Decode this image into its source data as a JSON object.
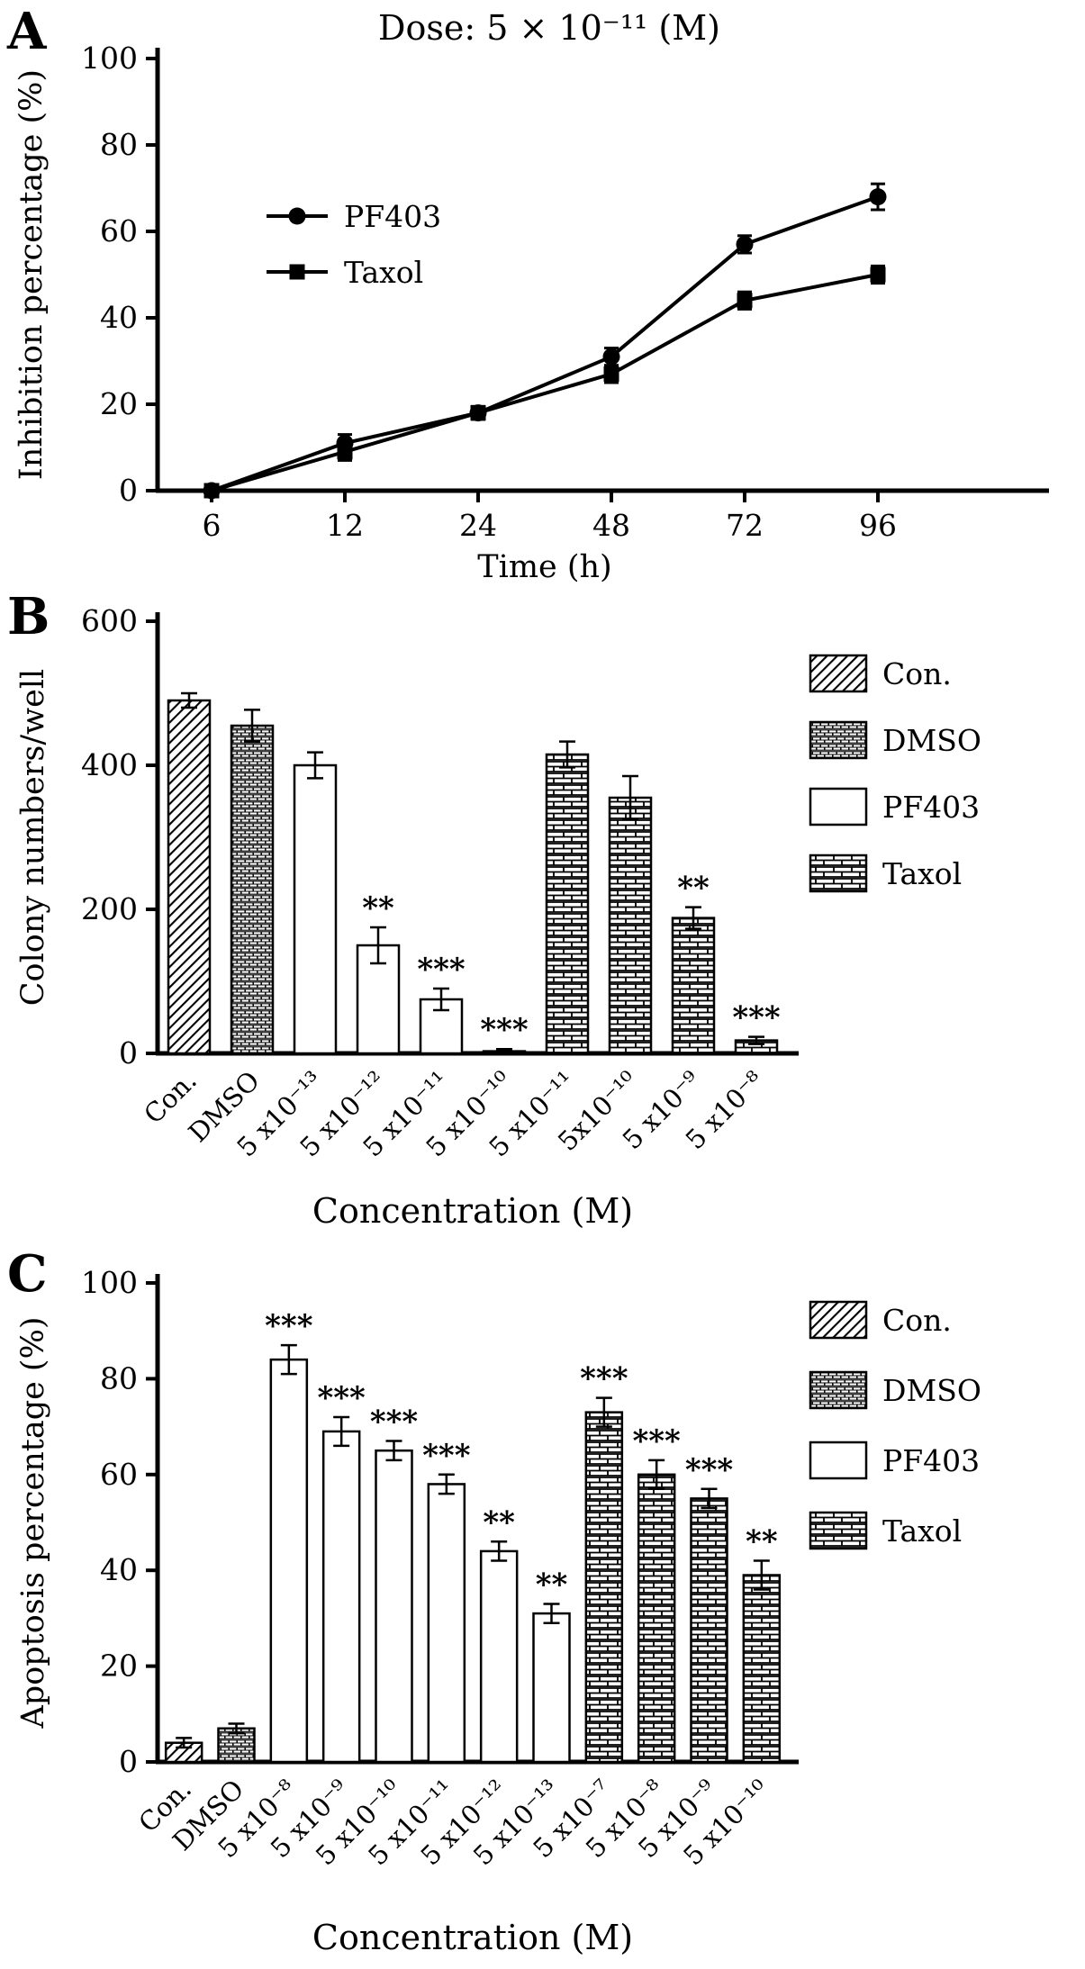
{
  "panel_labels": [
    "A",
    "B",
    "C"
  ],
  "chart_data": [
    {
      "panel": "A",
      "type": "line",
      "title": "Dose: 5 × 10⁻¹¹ (M)",
      "xlabel": "Time (h)",
      "ylabel": "Inhibition percentage (%)",
      "x_ticks": [
        "6",
        "12",
        "24",
        "48",
        "72",
        "96"
      ],
      "y_ticks": [
        0,
        20,
        40,
        60,
        80,
        100
      ],
      "ylim": [
        0,
        100
      ],
      "grid": false,
      "legend_position": "inside-left",
      "series": [
        {
          "name": "PF403",
          "marker": "circle",
          "values": [
            0,
            11,
            18,
            31,
            57,
            68
          ],
          "errors": [
            1,
            2,
            1.5,
            2,
            2,
            3
          ]
        },
        {
          "name": "Taxol",
          "marker": "square",
          "values": [
            0,
            9,
            18,
            27,
            44,
            50
          ],
          "errors": [
            1,
            2,
            1.5,
            2,
            2,
            2
          ]
        }
      ]
    },
    {
      "panel": "B",
      "type": "bar",
      "title": "",
      "xlabel": "Concentration (M)",
      "ylabel": "Colony numbers/well",
      "ylim": [
        0,
        600
      ],
      "y_ticks": [
        0,
        200,
        400,
        600
      ],
      "grid": false,
      "legend_position": "outside-right",
      "categories": [
        "Con.",
        "DMSO",
        "5 x10⁻¹³",
        "5 x10⁻¹²",
        "5 x10⁻¹¹",
        "5 x10⁻¹⁰",
        "5 x10⁻¹¹",
        "5x10⁻¹⁰",
        "5 x10⁻⁹",
        "5 x10⁻⁸"
      ],
      "values": [
        490,
        455,
        400,
        150,
        75,
        3,
        415,
        355,
        188,
        18
      ],
      "errors": [
        10,
        22,
        18,
        25,
        15,
        3,
        18,
        30,
        15,
        5
      ],
      "significance": [
        "",
        "",
        "",
        "**",
        "***",
        "***",
        "",
        "",
        "**",
        "***"
      ],
      "fills": [
        "hatch",
        "dmso",
        "white",
        "white",
        "white",
        "white",
        "brick",
        "brick",
        "brick",
        "brick"
      ],
      "legend": [
        {
          "label": "Con.",
          "fill": "hatch"
        },
        {
          "label": "DMSO",
          "fill": "dmso"
        },
        {
          "label": "PF403",
          "fill": "white"
        },
        {
          "label": "Taxol",
          "fill": "brick"
        }
      ]
    },
    {
      "panel": "C",
      "type": "bar",
      "title": "",
      "xlabel": "Concentration (M)",
      "ylabel": "Apoptosis percentage (%)",
      "ylim": [
        0,
        100
      ],
      "y_ticks": [
        0,
        20,
        40,
        60,
        80,
        100
      ],
      "grid": false,
      "legend_position": "outside-right",
      "categories": [
        "Con.",
        "DMSO",
        "5 x10⁻⁸",
        "5 x10⁻⁹",
        "5 x10⁻¹⁰",
        "5 x10⁻¹¹",
        "5 x10⁻¹²",
        "5 x10⁻¹³",
        "5 x10⁻⁷",
        "5 x10⁻⁸",
        "5 x10⁻⁹",
        "5 x10⁻¹⁰"
      ],
      "values": [
        4,
        7,
        84,
        69,
        65,
        58,
        44,
        31,
        73,
        60,
        55,
        39
      ],
      "errors": [
        1,
        1,
        3,
        3,
        2,
        2,
        2,
        2,
        3,
        3,
        2,
        3
      ],
      "significance": [
        "",
        "",
        "***",
        "***",
        "***",
        "***",
        "**",
        "**",
        "***",
        "***",
        "***",
        "**"
      ],
      "fills": [
        "hatch",
        "dmso",
        "white",
        "white",
        "white",
        "white",
        "white",
        "white",
        "brick",
        "brick",
        "brick",
        "brick"
      ],
      "legend": [
        {
          "label": "Con.",
          "fill": "hatch"
        },
        {
          "label": "DMSO",
          "fill": "dmso"
        },
        {
          "label": "PF403",
          "fill": "white"
        },
        {
          "label": "Taxol",
          "fill": "brick"
        }
      ]
    }
  ],
  "colors": {
    "axis": "#000000",
    "background": "#ffffff",
    "series": "#000000"
  }
}
